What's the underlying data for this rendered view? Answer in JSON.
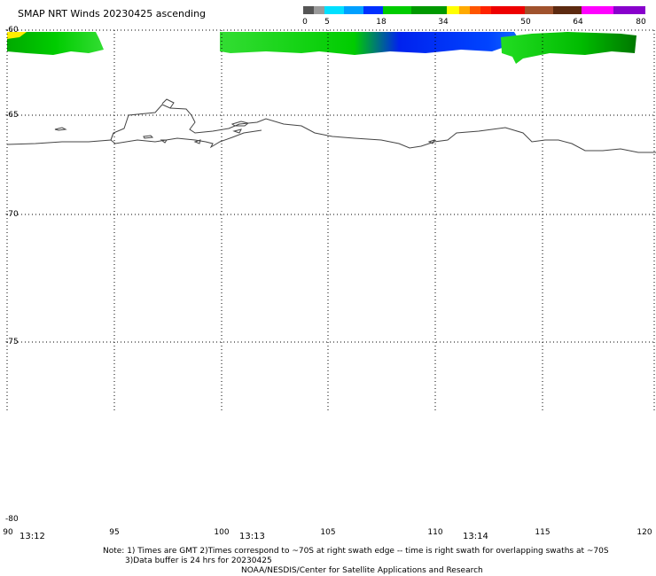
{
  "title": "SMAP NRT Winds 20230425 ascending",
  "colorbar": {
    "segments": [
      {
        "from": 0,
        "to": 5,
        "color": "#555555"
      },
      {
        "from": 0,
        "to": 5,
        "color": "#9a9a9a"
      },
      {
        "from": 5,
        "to": 10,
        "color": "#00e0ff"
      },
      {
        "from": 10,
        "to": 14,
        "color": "#00a0ff"
      },
      {
        "from": 14,
        "to": 18,
        "color": "#0040ff"
      },
      {
        "from": 18,
        "to": 26,
        "color": "#00cc00"
      },
      {
        "from": 26,
        "to": 34,
        "color": "#009900"
      },
      {
        "from": 34,
        "to": 38,
        "color": "#ffff00"
      },
      {
        "from": 38,
        "to": 42,
        "color": "#ffa500"
      },
      {
        "from": 42,
        "to": 46,
        "color": "#ff4400"
      },
      {
        "from": 46,
        "to": 50,
        "color": "#ee0000"
      },
      {
        "from": 50,
        "to": 57,
        "color": "#a0522d"
      },
      {
        "from": 57,
        "to": 64,
        "color": "#5c3317"
      },
      {
        "from": 64,
        "to": 72,
        "color": "#ff00ff"
      },
      {
        "from": 72,
        "to": 80,
        "color": "#8800cc"
      }
    ],
    "labels": [
      "0",
      "5",
      "18",
      "34",
      "50",
      "64",
      "80"
    ]
  },
  "lat_labels": [
    "-60",
    "-65",
    "-70",
    "-75",
    "-80"
  ],
  "lon_labels": [
    "90",
    "95",
    "100",
    "105",
    "110",
    "115",
    "120"
  ],
  "time_labels": [
    "13:12",
    "13:13",
    "13:14"
  ],
  "notes": [
    "Note: 1) Times are GMT 2)Times correspond to ~70S at right swath edge -- time is right swath for overlapping swaths at ~70S",
    "3)Data buffer is 24 hrs for 20230425",
    "NOAA/NESDIS/Center for Satellite Applications and Research"
  ]
}
